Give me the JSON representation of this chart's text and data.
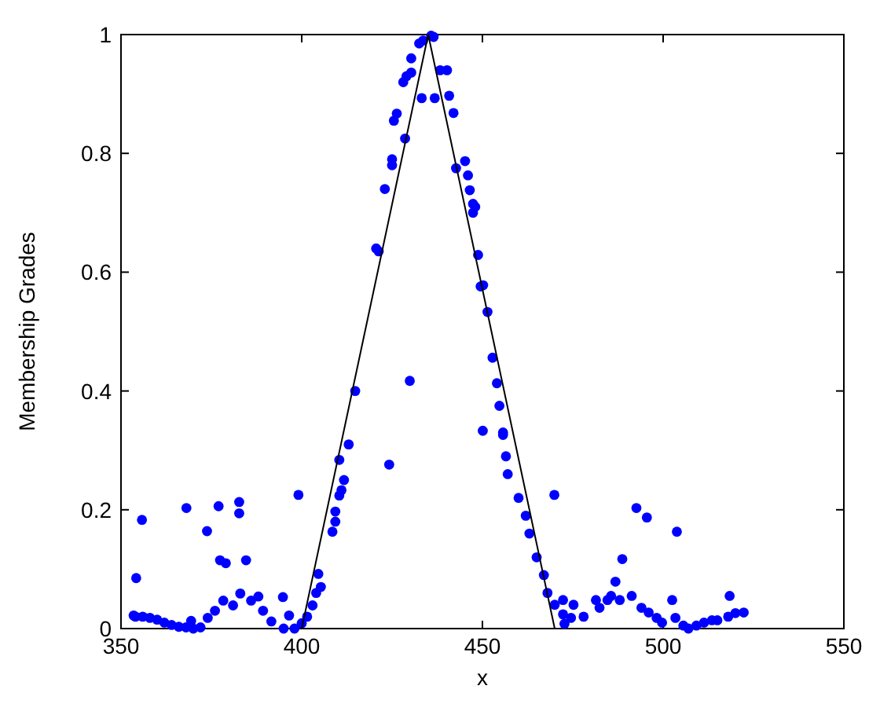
{
  "chart_data": {
    "type": "scatter",
    "xlabel": "x",
    "ylabel": "Membership Grades",
    "xlim": [
      350,
      550
    ],
    "xticks": [
      350,
      400,
      450,
      500,
      550
    ],
    "ylim": [
      0,
      1
    ],
    "yticks": [
      0,
      0.2,
      0.4,
      0.6,
      0.8,
      1
    ],
    "grid": false,
    "series": [
      {
        "color": "#0000ff",
        "marker": "circle",
        "x": [
          354.2,
          355.8,
          353.5,
          354,
          356,
          358,
          360,
          362,
          364,
          366,
          368,
          370,
          372,
          368.1,
          369.4,
          373.8,
          377,
          382.7,
          382.7,
          377.4,
          379,
          384.6,
          374,
          376,
          378.3,
          381,
          383,
          386,
          388,
          389.3,
          391.6,
          394.8,
          396.5,
          395,
          398,
          399.1,
          400,
          401.5,
          403,
          404,
          404.6,
          405.3,
          408.5,
          409.3,
          409.3,
          410.4,
          411,
          411.7,
          410.4,
          413,
          414.8,
          420.6,
          421.3,
          423,
          425,
          425,
          425.5,
          426.3,
          428.6,
          428.1,
          429,
          430.3,
          430.3,
          432.5,
          433.6,
          435.8,
          436.5,
          429.9,
          424.2,
          433.2,
          436.8,
          438.3,
          440.2,
          440.8,
          442,
          442.7,
          445.2,
          446,
          446.5,
          447.4,
          448,
          447.4,
          448.8,
          449.5,
          450.2,
          451.4,
          452.8,
          454,
          454.7,
          450.1,
          455.7,
          455.7,
          456.5,
          457,
          460,
          462,
          463,
          465,
          467,
          468,
          470,
          469.9,
          472.3,
          472.3,
          475.2,
          474.5,
          472.7,
          478,
          481.4,
          482.4,
          484.6,
          485.6,
          486.8,
          488.7,
          488,
          491.3,
          492.6,
          495.5,
          494,
          496,
          498.2,
          499.7,
          502.5,
          503.8,
          503.4,
          505.6,
          507,
          509.2,
          511.3,
          513.5,
          515,
          518.4,
          518,
          520,
          522.3
        ],
        "values": [
          0.085,
          0.183,
          0.022,
          0.02,
          0.02,
          0.018,
          0.015,
          0.01,
          0.006,
          0.003,
          0.002,
          0,
          0.002,
          0.203,
          0.013,
          0.164,
          0.206,
          0.213,
          0.194,
          0.115,
          0.11,
          0.115,
          0.018,
          0.03,
          0.047,
          0.039,
          0.059,
          0.047,
          0.054,
          0.03,
          0.012,
          0.053,
          0.022,
          0,
          0,
          0.225,
          0.009,
          0.02,
          0.039,
          0.06,
          0.092,
          0.07,
          0.163,
          0.18,
          0.197,
          0.224,
          0.233,
          0.25,
          0.284,
          0.31,
          0.4,
          0.64,
          0.635,
          0.74,
          0.78,
          0.79,
          0.855,
          0.867,
          0.825,
          0.92,
          0.93,
          0.936,
          0.96,
          0.985,
          0.99,
          0.998,
          0.996,
          0.417,
          0.276,
          0.893,
          0.893,
          0.94,
          0.94,
          0.897,
          0.868,
          0.775,
          0.787,
          0.763,
          0.738,
          0.715,
          0.71,
          0.7,
          0.629,
          0.576,
          0.578,
          0.533,
          0.456,
          0.413,
          0.375,
          0.333,
          0.33,
          0.326,
          0.29,
          0.26,
          0.22,
          0.19,
          0.16,
          0.12,
          0.09,
          0.06,
          0.04,
          0.225,
          0.048,
          0.024,
          0.04,
          0.018,
          0.008,
          0.02,
          0.048,
          0.035,
          0.048,
          0.055,
          0.079,
          0.117,
          0.048,
          0.055,
          0.203,
          0.187,
          0.035,
          0.027,
          0.018,
          0.01,
          0.048,
          0.163,
          0.018,
          0.005,
          0,
          0.005,
          0.01,
          0.014,
          0.014,
          0.055,
          0.02,
          0.026,
          0.027
        ]
      },
      {
        "type": "line",
        "color": "#000000",
        "marker": "none",
        "line_style": "solid",
        "x": [
          400,
          435,
          470
        ],
        "values": [
          0,
          1,
          0
        ]
      }
    ]
  }
}
